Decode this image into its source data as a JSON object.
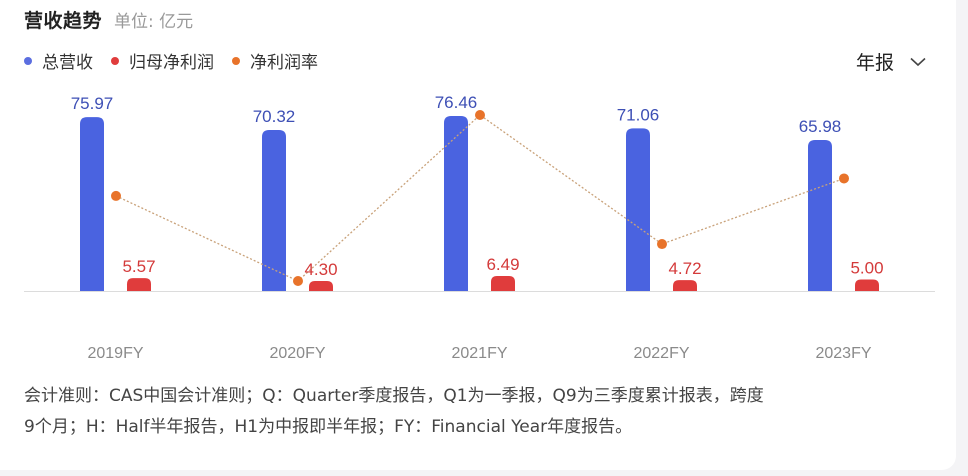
{
  "header": {
    "title": "营收趋势",
    "unit": "单位: 亿元"
  },
  "legend": [
    {
      "label": "总营收",
      "color": "#4a63e0"
    },
    {
      "label": "归母净利润",
      "color": "#e03c3c"
    },
    {
      "label": "净利润率",
      "color": "#e8732a"
    }
  ],
  "period_selector": {
    "selected": "年报",
    "icon": "chevron-down-icon"
  },
  "chart_data": {
    "type": "bar",
    "title": "营收趋势",
    "subtitle": "单位: 亿元",
    "categories": [
      "2019FY",
      "2020FY",
      "2021FY",
      "2022FY",
      "2023FY"
    ],
    "series": [
      {
        "name": "总营收",
        "type": "bar",
        "color": "#4a63e0",
        "values": [
          75.97,
          70.32,
          76.46,
          71.06,
          65.98
        ],
        "labels": [
          "75.97",
          "70.32",
          "76.46",
          "71.06",
          "65.98"
        ]
      },
      {
        "name": "归母净利润",
        "type": "bar",
        "color": "#e03c3c",
        "values": [
          5.57,
          4.3,
          6.49,
          4.72,
          5.0
        ],
        "labels": [
          "5.57",
          "4.30",
          "6.49",
          "4.72",
          "5.00"
        ]
      },
      {
        "name": "净利润率",
        "type": "line",
        "style": "dotted",
        "color": "#e8732a",
        "values": [
          7.33,
          6.11,
          8.49,
          6.64,
          7.58
        ],
        "unit": "%"
      }
    ],
    "xlabel": "",
    "ylabel": "",
    "grid": false,
    "legend_position": "top-left"
  },
  "footnote": {
    "line1": "会计准则：CAS中国会计准则；Q：Quarter季度报告，Q1为一季报，Q9为三季度累计报表，跨度",
    "line2": "9个月；H：Half半年报告，H1为中报即半年报；FY：Financial Year年度报告。"
  }
}
